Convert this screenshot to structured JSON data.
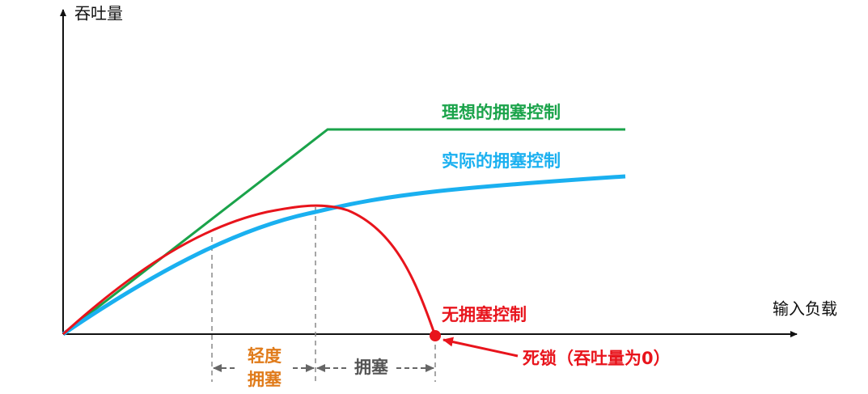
{
  "axes": {
    "y_label": "吞吐量",
    "x_label": "输入负载"
  },
  "curves": [
    {
      "label": "理想的拥塞控制"
    },
    {
      "label": "实际的拥塞控制"
    },
    {
      "label": "无拥塞控制"
    }
  ],
  "annotations": {
    "deadlock": "死锁（吞吐量为0）",
    "light_congestion": [
      "轻度",
      "拥塞"
    ],
    "congestion": "拥塞"
  }
}
